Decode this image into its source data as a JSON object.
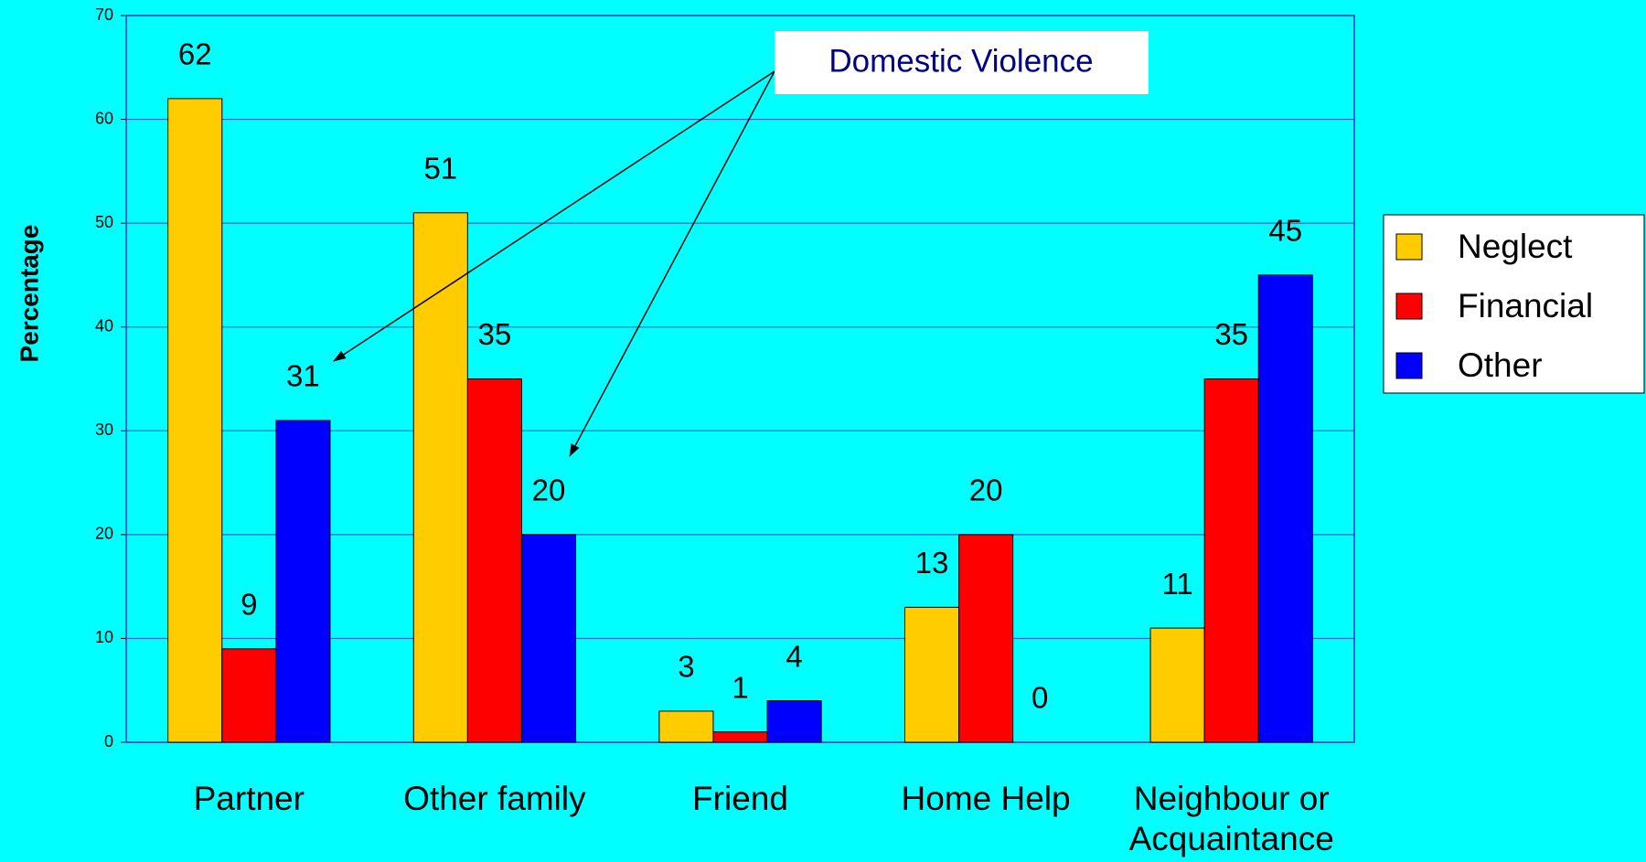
{
  "chart_data": {
    "type": "bar",
    "y_label": "Percentage",
    "annotation": "Domestic Violence",
    "categories": [
      "Partner",
      "Other family",
      "Friend",
      "Home Help",
      "Neighbour or Acquaintance"
    ],
    "series": [
      {
        "name": "Neglect",
        "color": "#ffcc00",
        "values": [
          62,
          51,
          3,
          13,
          11
        ]
      },
      {
        "name": "Financial",
        "color": "#ff0000",
        "values": [
          9,
          35,
          1,
          20,
          35
        ]
      },
      {
        "name": "Other",
        "color": "#0000ff",
        "values": [
          31,
          20,
          4,
          0,
          45
        ]
      }
    ],
    "ylim": [
      0,
      70
    ],
    "yticks": [
      0,
      10,
      20,
      30,
      40,
      50,
      60,
      70
    ],
    "grid": true,
    "legend": "right"
  }
}
